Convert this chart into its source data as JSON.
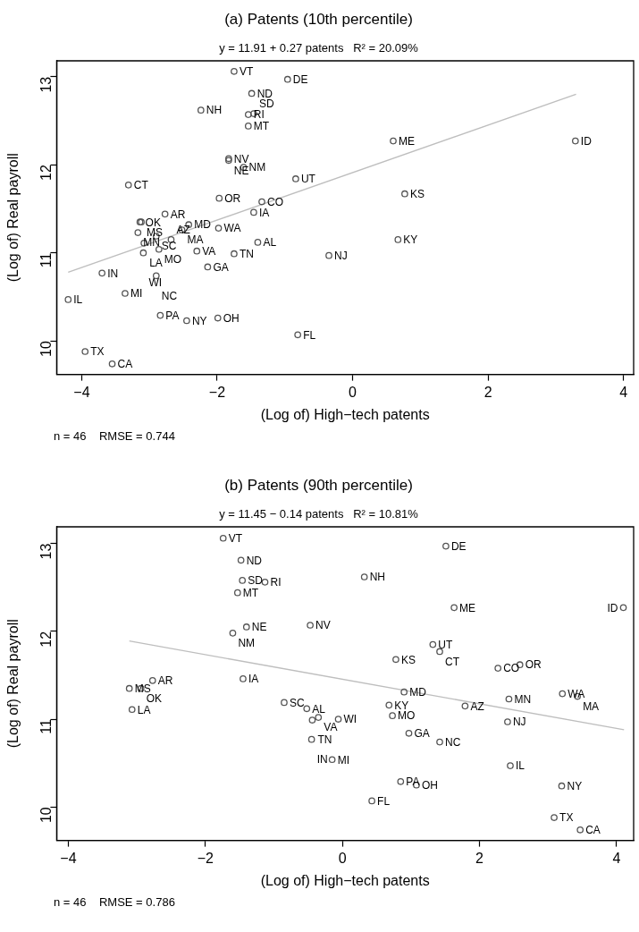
{
  "chart_data": [
    {
      "type": "scatter",
      "title": "(a) Patents (10th percentile)",
      "subtitle": "y = 11.91 + 0.27 patents   R² = 20.09%",
      "xlabel": "(Log of) High−tech patents",
      "ylabel": "(Log of) Real payroll",
      "xlim": [
        -4.37,
        4.15
      ],
      "ylim": [
        9.62,
        13.18
      ],
      "xticks": [
        -4,
        -2,
        0,
        2,
        4
      ],
      "yticks": [
        10,
        11,
        12,
        13
      ],
      "grid": false,
      "legend": false,
      "marker": "circle",
      "series": [
        {
          "type": "scatter",
          "color": "#555555",
          "x": [
            -1.75,
            -0.96,
            -1.49,
            -2.24,
            -1.54,
            -1.46,
            -1.54,
            -1.83,
            -1.83,
            -1.61,
            -0.84,
            -3.31,
            -1.97,
            -1.34,
            -1.46,
            -2.77,
            -3.14,
            -3.12,
            -2.42,
            -2.52,
            -1.98,
            -3.17,
            -2.9,
            -2.68,
            -3.08,
            -1.4,
            -2.86,
            -3.09,
            -2.3,
            -1.75,
            -0.35,
            -2.14,
            -3.7,
            -2.9,
            -3.36,
            -4.2,
            -2.84,
            -2.45,
            -1.99,
            -0.81,
            -3.95,
            -3.55,
            0.6,
            3.29,
            0.77,
            0.67
          ],
          "values": [
            13.06,
            12.97,
            12.81,
            12.62,
            12.57,
            12.58,
            12.44,
            12.07,
            12.05,
            11.97,
            11.84,
            11.77,
            11.62,
            11.58,
            11.46,
            11.44,
            11.35,
            11.35,
            11.32,
            11.26,
            11.28,
            11.23,
            11.19,
            11.15,
            11.11,
            11.12,
            11.04,
            11.0,
            11.02,
            10.99,
            10.97,
            10.84,
            10.77,
            10.74,
            10.54,
            10.47,
            10.29,
            10.23,
            10.26,
            10.07,
            9.88,
            9.74,
            12.27,
            12.27,
            11.67,
            11.15
          ]
        },
        {
          "type": "line",
          "color": "#bebebe",
          "marker": "none",
          "x": [
            -4.2,
            3.3
          ],
          "values": [
            10.78,
            12.8
          ]
        }
      ],
      "annotations": [
        {
          "text": "VT",
          "x": -1.75,
          "y": 13.06
        },
        {
          "text": "DE",
          "x": -0.96,
          "y": 12.97
        },
        {
          "text": "ND",
          "x": -1.49,
          "y": 12.81
        },
        {
          "text": "NH",
          "x": -2.24,
          "y": 12.62
        },
        {
          "text": "RI",
          "x": -1.54,
          "y": 12.57
        },
        {
          "text": "SD",
          "x": -1.46,
          "y": 12.58
        },
        {
          "text": "MT",
          "x": -1.54,
          "y": 12.44
        },
        {
          "text": "NV",
          "x": -1.83,
          "y": 12.07
        },
        {
          "text": "NE",
          "x": -1.83,
          "y": 12.05
        },
        {
          "text": "NM",
          "x": -1.61,
          "y": 11.97
        },
        {
          "text": "UT",
          "x": -0.84,
          "y": 11.84
        },
        {
          "text": "CT",
          "x": -3.31,
          "y": 11.77
        },
        {
          "text": "OR",
          "x": -1.97,
          "y": 11.62
        },
        {
          "text": "CO",
          "x": -1.34,
          "y": 11.58
        },
        {
          "text": "IA",
          "x": -1.46,
          "y": 11.46
        },
        {
          "text": "AR",
          "x": -2.77,
          "y": 11.44
        },
        {
          "text": "OK",
          "x": -3.14,
          "y": 11.35
        },
        {
          "text": "MS",
          "x": -3.12,
          "y": 11.35
        },
        {
          "text": "MD",
          "x": -2.42,
          "y": 11.32
        },
        {
          "text": "MA",
          "x": -2.52,
          "y": 11.26
        },
        {
          "text": "WA",
          "x": -1.98,
          "y": 11.28
        },
        {
          "text": "MN",
          "x": -3.17,
          "y": 11.23
        },
        {
          "text": "SC",
          "x": -2.9,
          "y": 11.19
        },
        {
          "text": "AZ",
          "x": -2.68,
          "y": 11.15
        },
        {
          "text": "LA",
          "x": -3.08,
          "y": 11.11
        },
        {
          "text": "AL",
          "x": -1.4,
          "y": 11.12
        },
        {
          "text": "MO",
          "x": -2.86,
          "y": 11.04
        },
        {
          "text": "WI",
          "x": -3.09,
          "y": 11.0
        },
        {
          "text": "VA",
          "x": -2.3,
          "y": 11.02
        },
        {
          "text": "TN",
          "x": -1.75,
          "y": 10.99
        },
        {
          "text": "NJ",
          "x": -0.35,
          "y": 10.97
        },
        {
          "text": "GA",
          "x": -2.14,
          "y": 10.84
        },
        {
          "text": "IN",
          "x": -3.7,
          "y": 10.77
        },
        {
          "text": "NC",
          "x": -2.9,
          "y": 10.74
        },
        {
          "text": "MI",
          "x": -3.36,
          "y": 10.54
        },
        {
          "text": "IL",
          "x": -4.2,
          "y": 10.47
        },
        {
          "text": "PA",
          "x": -2.84,
          "y": 10.29
        },
        {
          "text": "NY",
          "x": -2.45,
          "y": 10.23
        },
        {
          "text": "OH",
          "x": -1.99,
          "y": 10.26
        },
        {
          "text": "FL",
          "x": -0.81,
          "y": 10.07
        },
        {
          "text": "TX",
          "x": -3.95,
          "y": 9.88
        },
        {
          "text": "CA",
          "x": -3.55,
          "y": 9.74
        },
        {
          "text": "ME",
          "x": 0.6,
          "y": 12.27
        },
        {
          "text": "ID",
          "x": 3.29,
          "y": 12.27
        },
        {
          "text": "KS",
          "x": 0.77,
          "y": 11.67
        },
        {
          "text": "KY",
          "x": 0.67,
          "y": 11.15
        },
        "n = 46    RMSE = 0.744"
      ]
    },
    {
      "type": "scatter",
      "title": "(b) Patents (90th percentile)",
      "subtitle": "y = 11.45 − 0.14 patents   R² = 10.81%",
      "xlabel": "(Log of) High−tech patents",
      "ylabel": "(Log of) Real payroll",
      "xlim": [
        -4.17,
        4.25
      ],
      "ylim": [
        9.62,
        13.19
      ],
      "xticks": [
        -4,
        -2,
        0,
        2,
        4
      ],
      "yticks": [
        10,
        11,
        12,
        13
      ],
      "grid": false,
      "legend": false,
      "marker": "circle",
      "series": [
        {
          "type": "scatter",
          "color": "#555555",
          "x": [
            -1.74,
            -1.48,
            -1.46,
            -1.13,
            -1.53,
            -1.4,
            -1.6,
            -0.47,
            -1.45,
            -2.77,
            -3.11,
            -2.94,
            -3.07,
            -0.85,
            -0.52,
            -0.35,
            -0.44,
            -0.06,
            -0.45,
            -0.15,
            1.51,
            0.32,
            1.63,
            4.1,
            1.32,
            1.42,
            0.78,
            2.27,
            2.59,
            0.9,
            0.68,
            1.79,
            2.43,
            3.21,
            3.43,
            0.73,
            2.41,
            0.97,
            1.42,
            2.45,
            0.85,
            1.08,
            3.2,
            0.43,
            3.09,
            3.47
          ],
          "values": [
            13.06,
            12.81,
            12.58,
            12.56,
            12.44,
            12.05,
            11.98,
            12.07,
            11.46,
            11.44,
            11.35,
            11.35,
            11.11,
            11.19,
            11.12,
            11.02,
            10.99,
            11.0,
            10.77,
            10.54,
            12.97,
            12.62,
            12.27,
            12.27,
            11.85,
            11.77,
            11.68,
            11.58,
            11.62,
            11.31,
            11.16,
            11.15,
            11.23,
            11.29,
            11.26,
            11.04,
            10.97,
            10.84,
            10.74,
            10.47,
            10.29,
            10.25,
            10.24,
            10.07,
            9.88,
            9.74
          ]
        },
        {
          "type": "line",
          "color": "#bebebe",
          "marker": "none",
          "x": [
            -3.11,
            4.11
          ],
          "values": [
            11.89,
            10.88
          ]
        }
      ],
      "annotations": [
        {
          "text": "VT",
          "x": -1.74,
          "y": 13.06
        },
        {
          "text": "ND",
          "x": -1.48,
          "y": 12.81
        },
        {
          "text": "SD",
          "x": -1.46,
          "y": 12.58
        },
        {
          "text": "RI",
          "x": -1.13,
          "y": 12.56
        },
        {
          "text": "MT",
          "x": -1.53,
          "y": 12.44
        },
        {
          "text": "NE",
          "x": -1.4,
          "y": 12.05
        },
        {
          "text": "NM",
          "x": -1.6,
          "y": 11.98
        },
        {
          "text": "NV",
          "x": -0.47,
          "y": 12.07
        },
        {
          "text": "IA",
          "x": -1.45,
          "y": 11.46
        },
        {
          "text": "AR",
          "x": -2.77,
          "y": 11.44
        },
        {
          "text": "MS",
          "x": -3.11,
          "y": 11.35
        },
        {
          "text": "OK",
          "x": -2.94,
          "y": 11.35
        },
        {
          "text": "LA",
          "x": -3.07,
          "y": 11.11
        },
        {
          "text": "SC",
          "x": -0.85,
          "y": 11.19
        },
        {
          "text": "AL",
          "x": -0.52,
          "y": 11.12
        },
        {
          "text": "VA",
          "x": -0.35,
          "y": 11.02
        },
        {
          "text": "TN",
          "x": -0.44,
          "y": 10.99
        },
        {
          "text": "WI",
          "x": -0.06,
          "y": 11.0
        },
        {
          "text": "IN",
          "x": -0.45,
          "y": 10.77
        },
        {
          "text": "MI",
          "x": -0.15,
          "y": 10.54
        },
        {
          "text": "DE",
          "x": 1.51,
          "y": 12.97
        },
        {
          "text": "NH",
          "x": 0.32,
          "y": 12.62
        },
        {
          "text": "ME",
          "x": 1.63,
          "y": 12.27
        },
        {
          "text": "ID",
          "x": 4.1,
          "y": 12.27
        },
        {
          "text": "UT",
          "x": 1.32,
          "y": 11.85
        },
        {
          "text": "CT",
          "x": 1.42,
          "y": 11.77
        },
        {
          "text": "KS",
          "x": 0.78,
          "y": 11.68
        },
        {
          "text": "CO",
          "x": 2.27,
          "y": 11.58
        },
        {
          "text": "OR",
          "x": 2.59,
          "y": 11.62
        },
        {
          "text": "MD",
          "x": 0.9,
          "y": 11.31
        },
        {
          "text": "KY",
          "x": 0.68,
          "y": 11.16
        },
        {
          "text": "AZ",
          "x": 1.79,
          "y": 11.15
        },
        {
          "text": "MN",
          "x": 2.43,
          "y": 11.23
        },
        {
          "text": "WA",
          "x": 3.21,
          "y": 11.29
        },
        {
          "text": "MA",
          "x": 3.43,
          "y": 11.26
        },
        {
          "text": "MO",
          "x": 0.73,
          "y": 11.04
        },
        {
          "text": "NJ",
          "x": 2.41,
          "y": 10.97
        },
        {
          "text": "GA",
          "x": 0.97,
          "y": 10.84
        },
        {
          "text": "NC",
          "x": 1.42,
          "y": 10.74
        },
        {
          "text": "IL",
          "x": 2.45,
          "y": 10.47
        },
        {
          "text": "PA",
          "x": 0.85,
          "y": 10.29
        },
        {
          "text": "OH",
          "x": 1.08,
          "y": 10.25
        },
        {
          "text": "NY",
          "x": 3.2,
          "y": 10.24
        },
        {
          "text": "FL",
          "x": 0.43,
          "y": 10.07
        },
        {
          "text": "TX",
          "x": 3.09,
          "y": 9.88
        },
        {
          "text": "CA",
          "x": 3.47,
          "y": 9.74
        },
        "n = 46    RMSE = 0.786"
      ]
    }
  ]
}
